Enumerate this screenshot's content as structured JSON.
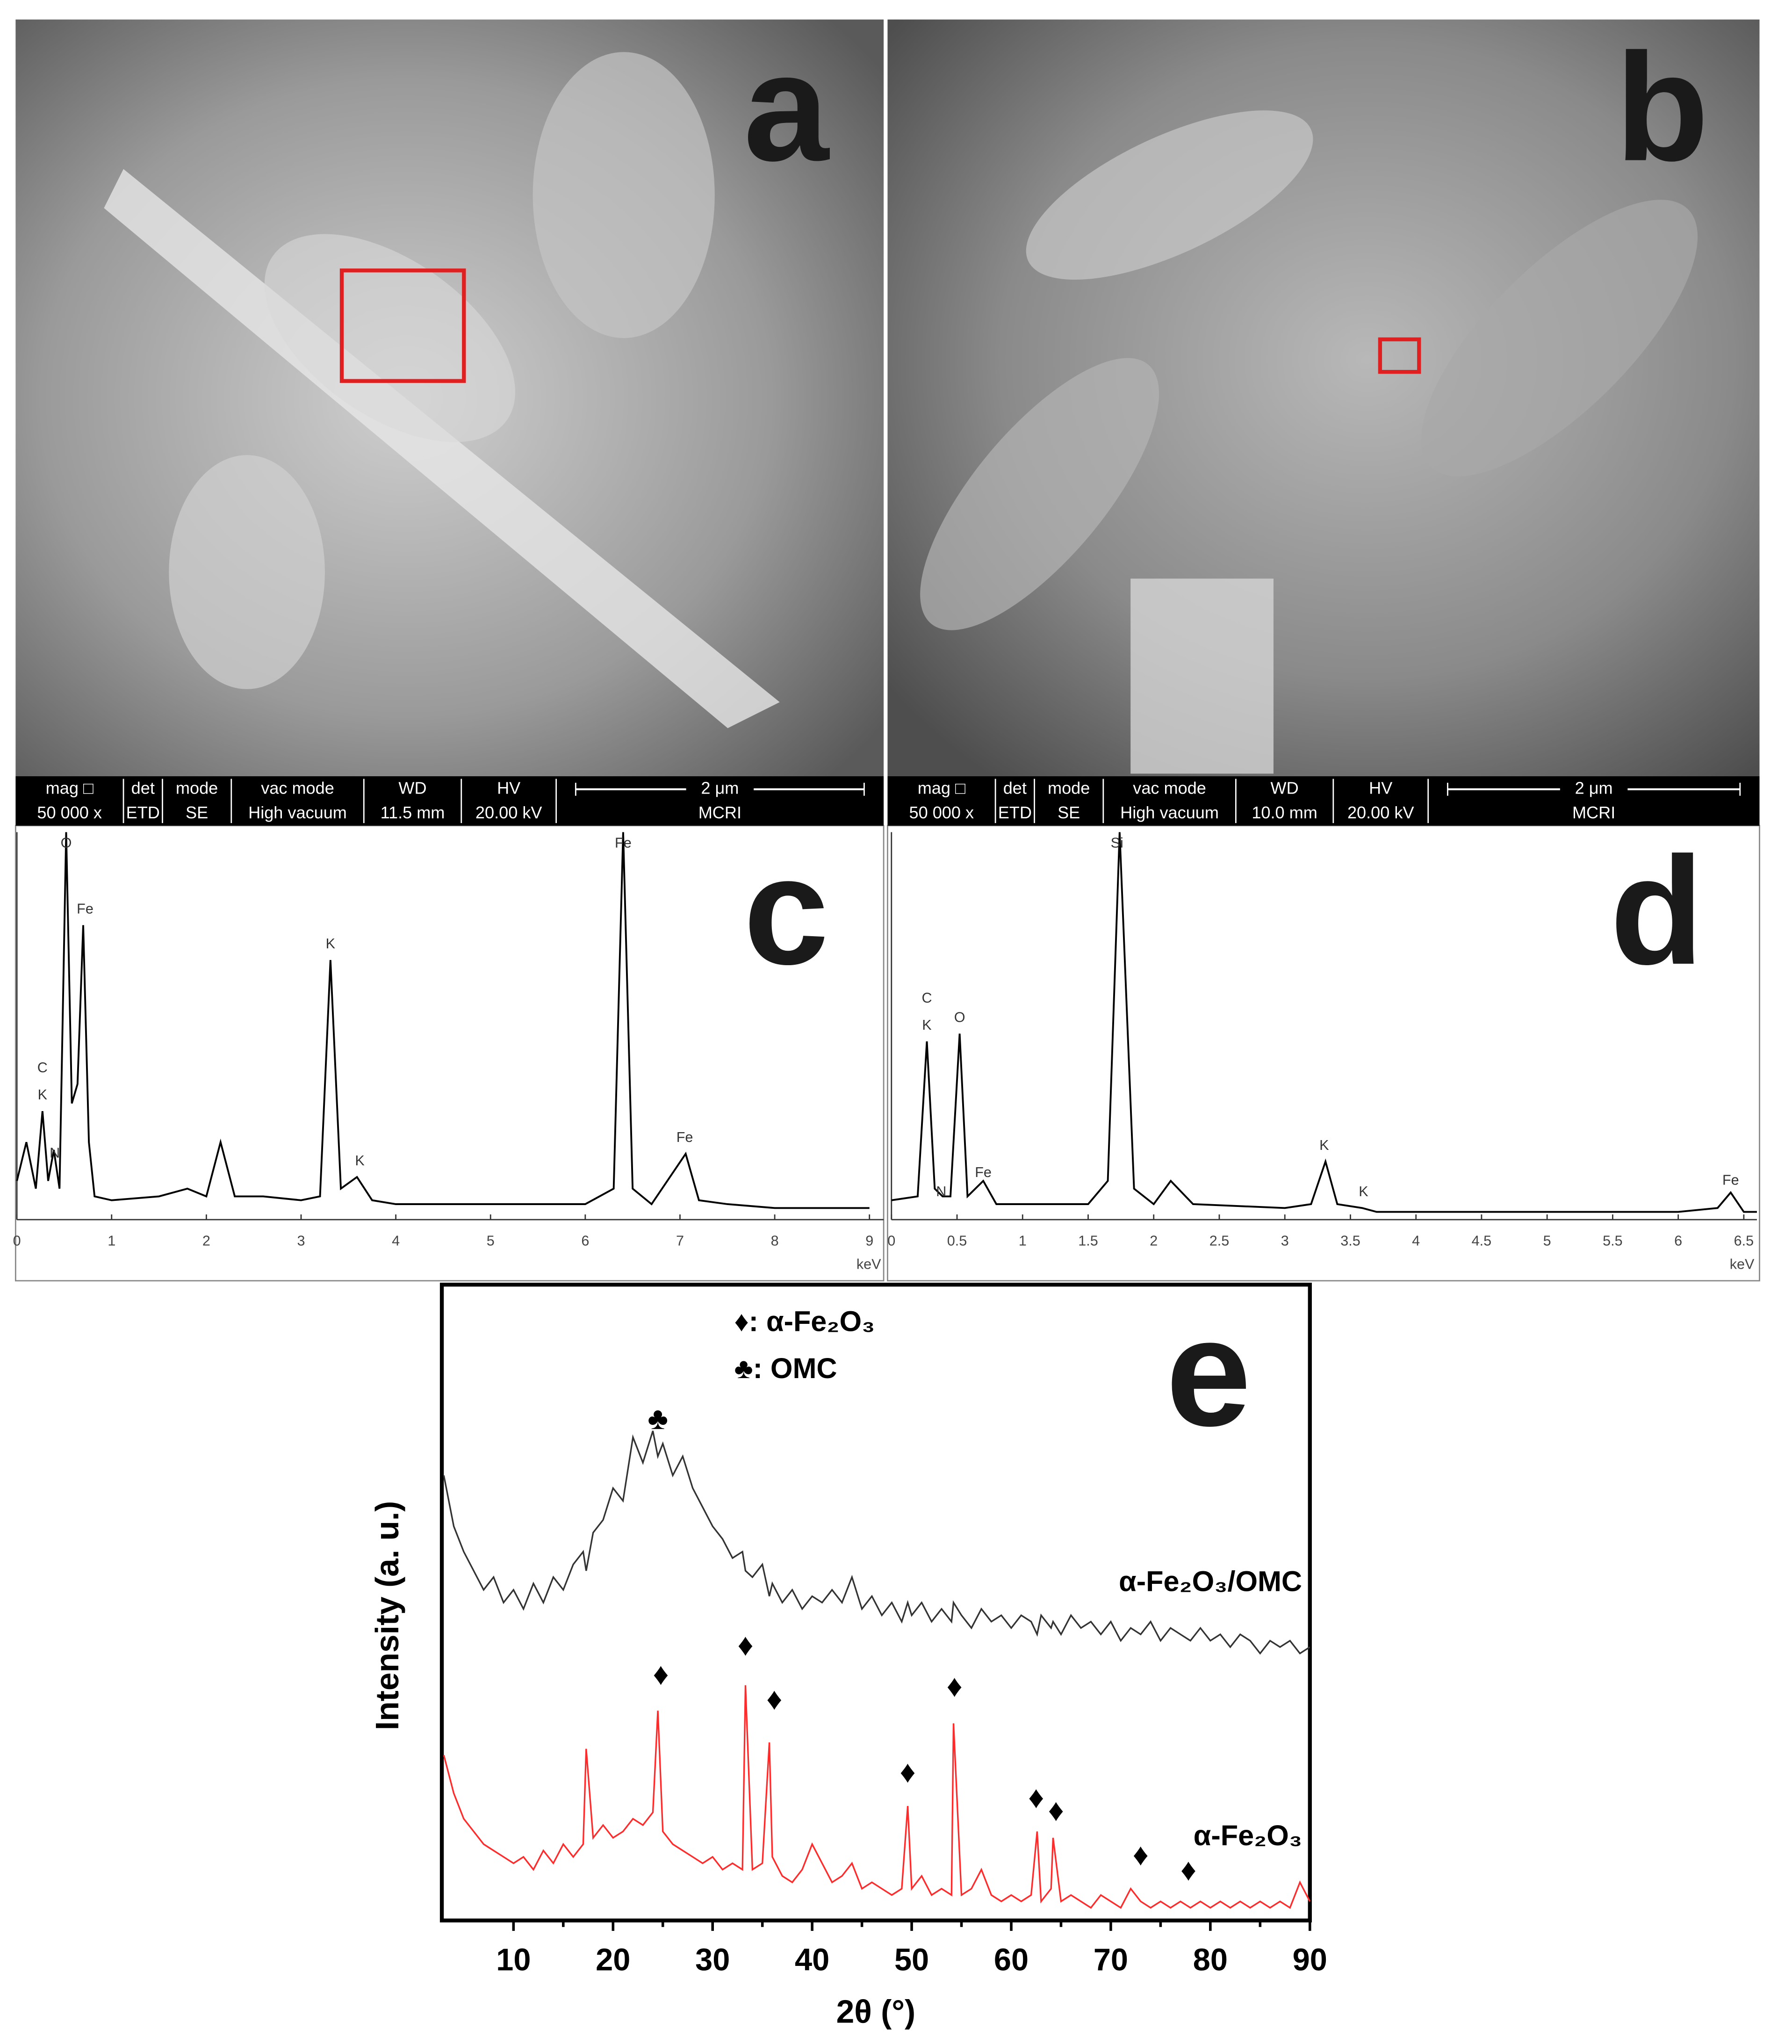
{
  "panels": [
    {
      "letter": "a",
      "info_bar": {
        "headers": [
          "mag □",
          "det",
          "mode",
          "vac mode",
          "WD",
          "HV"
        ],
        "scale_bar": "2 μm",
        "values": [
          "50 000 x",
          "ETD",
          "SE",
          "High vacuum",
          "11.5 mm",
          "20.00 kV",
          "MCRI"
        ]
      }
    },
    {
      "letter": "b",
      "info_bar": {
        "headers": [
          "mag □",
          "det",
          "mode",
          "vac mode",
          "WD",
          "HV"
        ],
        "scale_bar": "2 μm",
        "values": [
          "50 000 x",
          "ETD",
          "SE",
          "High vacuum",
          "10.0 mm",
          "20.00 kV",
          "MCRI"
        ]
      }
    }
  ],
  "chart_data": [
    {
      "type": "line",
      "letter": "c",
      "xlabel": "keV",
      "color": "#000000",
      "x": [
        0,
        0.1,
        0.2,
        0.27,
        0.33,
        0.39,
        0.45,
        0.52,
        0.58,
        0.64,
        0.7,
        0.76,
        0.82,
        1,
        1.5,
        1.8,
        2,
        2.15,
        2.3,
        2.6,
        3,
        3.2,
        3.31,
        3.42,
        3.59,
        3.75,
        4,
        5,
        6,
        6.3,
        6.4,
        6.5,
        6.7,
        7.06,
        7.2,
        7.5,
        8,
        9
      ],
      "values": [
        10,
        20,
        8,
        28,
        10,
        18,
        8,
        100,
        30,
        35,
        76,
        20,
        6,
        5,
        6,
        8,
        6,
        20,
        6,
        6,
        5,
        6,
        67,
        8,
        11,
        5,
        4,
        4,
        4,
        8,
        100,
        8,
        4,
        17,
        5,
        4,
        3,
        3
      ],
      "xlim": [
        0,
        9.15
      ],
      "ylim": [
        0,
        100
      ],
      "xticks": [
        0,
        1,
        2,
        3,
        4,
        5,
        6,
        7,
        8,
        9
      ],
      "annotations": [
        {
          "text": "O",
          "x": 0.52,
          "y": 97
        },
        {
          "text": "C",
          "x": 0.27,
          "y": 39
        },
        {
          "text": "K",
          "x": 0.27,
          "y": 32
        },
        {
          "text": "N",
          "x": 0.4,
          "y": 17
        },
        {
          "text": "Fe",
          "x": 0.72,
          "y": 80
        },
        {
          "text": "K",
          "x": 3.31,
          "y": 71
        },
        {
          "text": "K",
          "x": 3.62,
          "y": 15
        },
        {
          "text": "Fe",
          "x": 6.4,
          "y": 97
        },
        {
          "text": "Fe",
          "x": 7.05,
          "y": 21
        }
      ]
    },
    {
      "type": "line",
      "letter": "d",
      "xlabel": "keV",
      "color": "#000000",
      "x": [
        0,
        0.2,
        0.27,
        0.33,
        0.39,
        0.45,
        0.52,
        0.58,
        0.7,
        0.8,
        1,
        1.5,
        1.65,
        1.74,
        1.85,
        2,
        2.13,
        2.3,
        3,
        3.2,
        3.31,
        3.4,
        3.59,
        3.7,
        4,
        5,
        6,
        6.3,
        6.4,
        6.5,
        6.6
      ],
      "values": [
        5,
        6,
        46,
        8,
        6,
        6,
        48,
        6,
        10,
        4,
        4,
        4,
        10,
        100,
        8,
        4,
        10,
        4,
        3,
        4,
        15,
        4,
        3,
        2,
        2,
        2,
        2,
        3,
        7,
        2,
        2
      ],
      "xlim": [
        0,
        6.6
      ],
      "ylim": [
        0,
        100
      ],
      "xticks": [
        0,
        0.5,
        1,
        1.5,
        2,
        2.5,
        3,
        3.5,
        4,
        4.5,
        5,
        5.5,
        6,
        6.5
      ],
      "annotations": [
        {
          "text": "C",
          "x": 0.27,
          "y": 57
        },
        {
          "text": "K",
          "x": 0.27,
          "y": 50
        },
        {
          "text": "N",
          "x": 0.38,
          "y": 7
        },
        {
          "text": "O",
          "x": 0.52,
          "y": 52
        },
        {
          "text": "Fe",
          "x": 0.7,
          "y": 12
        },
        {
          "text": "Si",
          "x": 1.72,
          "y": 97
        },
        {
          "text": "K",
          "x": 3.3,
          "y": 19
        },
        {
          "text": "K",
          "x": 3.6,
          "y": 7
        },
        {
          "text": "Fe",
          "x": 6.4,
          "y": 10
        }
      ]
    },
    {
      "type": "line",
      "letter": "e",
      "xlabel": "2θ (°)",
      "ylabel": "Intensity (a. u.)",
      "legend": [
        "♦: α-Fe₂O₃",
        "♣: OMC"
      ],
      "x": [
        3,
        4,
        5,
        6,
        7,
        8,
        9,
        10,
        11,
        12,
        13,
        14,
        15,
        16,
        17,
        17.3,
        18,
        19,
        20,
        21,
        22,
        23,
        24,
        24.5,
        25,
        26,
        27,
        28,
        29,
        30,
        31,
        32,
        33,
        33.3,
        34,
        35,
        35.7,
        36,
        37,
        38,
        39,
        40,
        41,
        42,
        43,
        44,
        45,
        46,
        47,
        48,
        49,
        49.6,
        50,
        51,
        52,
        53,
        54,
        54.2,
        55,
        56,
        57,
        58,
        59,
        60,
        61,
        62,
        62.6,
        63,
        64,
        64.2,
        65,
        66,
        67,
        68,
        69,
        70,
        71,
        72,
        73,
        74,
        75,
        76,
        77,
        78,
        79,
        80,
        81,
        82,
        83,
        84,
        85,
        86,
        87,
        88,
        89,
        90
      ],
      "series": [
        {
          "name": "α-Fe₂O₃/OMC",
          "color": "#333333",
          "values": [
            70,
            62,
            58,
            55,
            52,
            54,
            50,
            52,
            49,
            53,
            50,
            54,
            52,
            56,
            58,
            55,
            61,
            63,
            68,
            66,
            76,
            72,
            77,
            73,
            75,
            70,
            73,
            68,
            65,
            62,
            60,
            57,
            58,
            55,
            54,
            56,
            51,
            53,
            50,
            52,
            49,
            51,
            50,
            52,
            50,
            54,
            49,
            51,
            48,
            50,
            47,
            50,
            48,
            50,
            47,
            49,
            47,
            50,
            48,
            46,
            49,
            47,
            48,
            46,
            48,
            47,
            45,
            48,
            46,
            47,
            45,
            48,
            46,
            47,
            45,
            47,
            44,
            46,
            45,
            47,
            44,
            46,
            45,
            44,
            46,
            44,
            45,
            43,
            45,
            44,
            42,
            44,
            43,
            44,
            42,
            43
          ]
        },
        {
          "name": "α-Fe₂O₃",
          "color": "#ff2a2a",
          "values": [
            26,
            20,
            16,
            14,
            12,
            11,
            10,
            9,
            10,
            8,
            11,
            9,
            12,
            10,
            12,
            27,
            13,
            15,
            13,
            14,
            16,
            15,
            17,
            33,
            14,
            12,
            11,
            10,
            9,
            10,
            8,
            9,
            8,
            37,
            8,
            9,
            28,
            10,
            7,
            6,
            8,
            12,
            9,
            6,
            7,
            9,
            5,
            6,
            5,
            4,
            5,
            18,
            5,
            7,
            4,
            5,
            4,
            31,
            4,
            5,
            8,
            4,
            3,
            4,
            3,
            4,
            14,
            3,
            5,
            13,
            3,
            4,
            3,
            2,
            4,
            3,
            2,
            5,
            3,
            2,
            3,
            2,
            3,
            2,
            3,
            2,
            3,
            2,
            3,
            2,
            3,
            2,
            3,
            2,
            6,
            3
          ]
        }
      ],
      "xlim": [
        2.8,
        90
      ],
      "ylim": [
        0,
        100
      ],
      "xticks": [
        10,
        20,
        30,
        40,
        50,
        60,
        70,
        80,
        90
      ],
      "annotations": [
        {
          "text": "♣",
          "x": 24.5,
          "y": 78.6
        },
        {
          "text": "♦",
          "x": 24.8,
          "y": 38.4
        },
        {
          "text": "♦",
          "x": 33.3,
          "y": 43
        },
        {
          "text": "♦",
          "x": 36.2,
          "y": 34.5
        },
        {
          "text": "♦",
          "x": 49.6,
          "y": 23
        },
        {
          "text": "♦",
          "x": 54.3,
          "y": 36.5
        },
        {
          "text": "♦",
          "x": 62.5,
          "y": 19
        },
        {
          "text": "♦",
          "x": 64.5,
          "y": 17
        },
        {
          "text": "♦",
          "x": 73,
          "y": 10
        },
        {
          "text": "♦",
          "x": 77.8,
          "y": 7.6
        }
      ]
    }
  ]
}
